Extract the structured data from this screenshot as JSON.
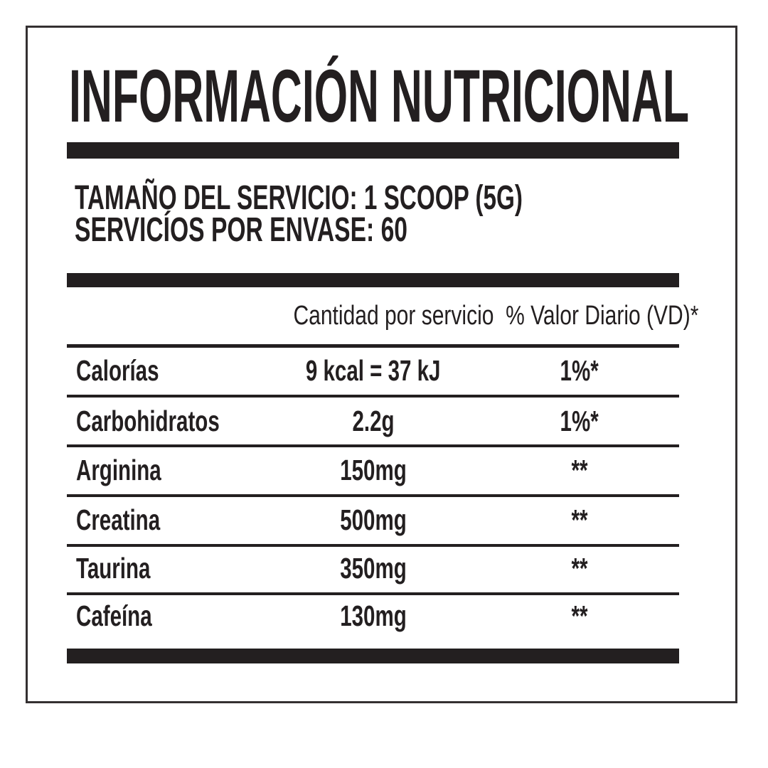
{
  "title": "INFORMACIÓN NUTRICIONAL",
  "serving": {
    "size_line": "TAMAÑO DEL SERVICIO: 1 SCOOP (5G)",
    "per_container_line": "SERVICÍOS POR ENVASE: 60"
  },
  "table": {
    "headers": {
      "amount": "Cantidad por servicio",
      "daily_value": "% Valor Diario (VD)*"
    },
    "rows": [
      {
        "name": "Calorías",
        "amount": "9 kcal = 37 kJ",
        "daily_value": "1%*"
      },
      {
        "name": "Carbohidratos",
        "amount": "2.2g",
        "daily_value": "1%*"
      },
      {
        "name": "Arginina",
        "amount": "150mg",
        "daily_value": "**"
      },
      {
        "name": "Creatina",
        "amount": "500mg",
        "daily_value": "**"
      },
      {
        "name": "Taurina",
        "amount": "350mg",
        "daily_value": "**"
      },
      {
        "name": "Cafeína",
        "amount": "130mg",
        "daily_value": "**"
      }
    ]
  },
  "colors": {
    "ink": "#231f20",
    "background": "#ffffff",
    "border": "#343031"
  }
}
